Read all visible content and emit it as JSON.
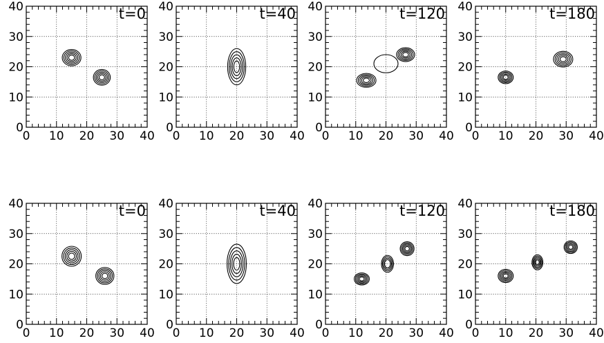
{
  "chart_data": {
    "type": "contour",
    "xlim": [
      0,
      40
    ],
    "ylim": [
      0,
      40
    ],
    "x_ticks": [
      0,
      10,
      20,
      30,
      40
    ],
    "y_ticks": [
      0,
      10,
      20,
      30,
      40
    ],
    "grid": "dotted",
    "panels": [
      {
        "row": 1,
        "title": "t=0",
        "blobs": [
          {
            "cx": 15,
            "cy": 23,
            "sx": 3.1,
            "sy": 2.7,
            "levels": 5
          },
          {
            "cx": 25,
            "cy": 16.5,
            "sx": 2.8,
            "sy": 2.6,
            "levels": 5
          }
        ]
      },
      {
        "row": 1,
        "title": "t=40",
        "blobs": [
          {
            "cx": 20,
            "cy": 20,
            "sx": 3.0,
            "sy": 6.0,
            "levels": 5
          }
        ]
      },
      {
        "row": 1,
        "title": "t=120",
        "blobs": [
          {
            "cx": 13.5,
            "cy": 15.5,
            "sx": 3.2,
            "sy": 2.3,
            "levels": 5
          },
          {
            "cx": 26.5,
            "cy": 24,
            "sx": 3.0,
            "sy": 2.3,
            "levels": 5
          },
          {
            "cx": 20,
            "cy": 21,
            "sx": 4.0,
            "sy": 3.0,
            "levels": 1
          }
        ]
      },
      {
        "row": 1,
        "title": "t=180",
        "blobs": [
          {
            "cx": 10,
            "cy": 16.5,
            "sx": 2.5,
            "sy": 2.1,
            "levels": 5
          },
          {
            "cx": 29,
            "cy": 22.5,
            "sx": 3.2,
            "sy": 2.6,
            "levels": 5
          }
        ]
      },
      {
        "row": 2,
        "title": "t=0",
        "blobs": [
          {
            "cx": 15,
            "cy": 22.5,
            "sx": 3.2,
            "sy": 3.3,
            "levels": 5
          },
          {
            "cx": 26,
            "cy": 16,
            "sx": 3.0,
            "sy": 2.8,
            "levels": 5
          }
        ]
      },
      {
        "row": 2,
        "title": "t=40",
        "blobs": [
          {
            "cx": 20,
            "cy": 20,
            "sx": 3.2,
            "sy": 6.5,
            "levels": 5
          }
        ]
      },
      {
        "row": 2,
        "title": "t=120",
        "blobs": [
          {
            "cx": 12,
            "cy": 15,
            "sx": 2.5,
            "sy": 2.0,
            "levels": 5
          },
          {
            "cx": 20.5,
            "cy": 20,
            "sx": 2.0,
            "sy": 2.8,
            "levels": 4
          },
          {
            "cx": 27,
            "cy": 25,
            "sx": 2.3,
            "sy": 2.3,
            "levels": 5
          }
        ]
      },
      {
        "row": 2,
        "title": "t=180",
        "blobs": [
          {
            "cx": 10,
            "cy": 16,
            "sx": 2.5,
            "sy": 2.2,
            "levels": 5
          },
          {
            "cx": 20.5,
            "cy": 20.5,
            "sx": 1.8,
            "sy": 2.5,
            "levels": 5
          },
          {
            "cx": 31.5,
            "cy": 25.5,
            "sx": 2.2,
            "sy": 2.1,
            "levels": 5
          }
        ]
      }
    ]
  }
}
